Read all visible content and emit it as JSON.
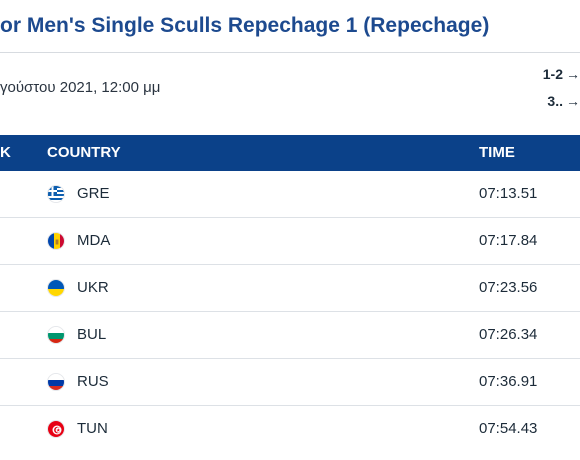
{
  "header": {
    "title": "or Men's Single Sculls Repechage 1 (Repechage)",
    "datetime": "γούστου 2021, 12:00 μμ"
  },
  "legend": [
    {
      "label": "1-2",
      "arrow": "→"
    },
    {
      "label": "3..",
      "arrow": "→"
    }
  ],
  "table": {
    "columns": {
      "rank": "K",
      "country": "COUNTRY",
      "time": "TIME"
    },
    "rows": [
      {
        "country": "GRE",
        "time": "07:13.51",
        "flag": "greece-flag-icon"
      },
      {
        "country": "MDA",
        "time": "07:17.84",
        "flag": "moldova-flag-icon"
      },
      {
        "country": "UKR",
        "time": "07:23.56",
        "flag": "ukraine-flag-icon"
      },
      {
        "country": "BUL",
        "time": "07:26.34",
        "flag": "bulgaria-flag-icon"
      },
      {
        "country": "RUS",
        "time": "07:36.91",
        "flag": "russia-flag-icon"
      },
      {
        "country": "TUN",
        "time": "07:54.43",
        "flag": "tunisia-flag-icon"
      }
    ]
  },
  "colors": {
    "title": "#1d4a8f",
    "header_bg": "#0b4189",
    "row_divider": "#dde1e6"
  }
}
